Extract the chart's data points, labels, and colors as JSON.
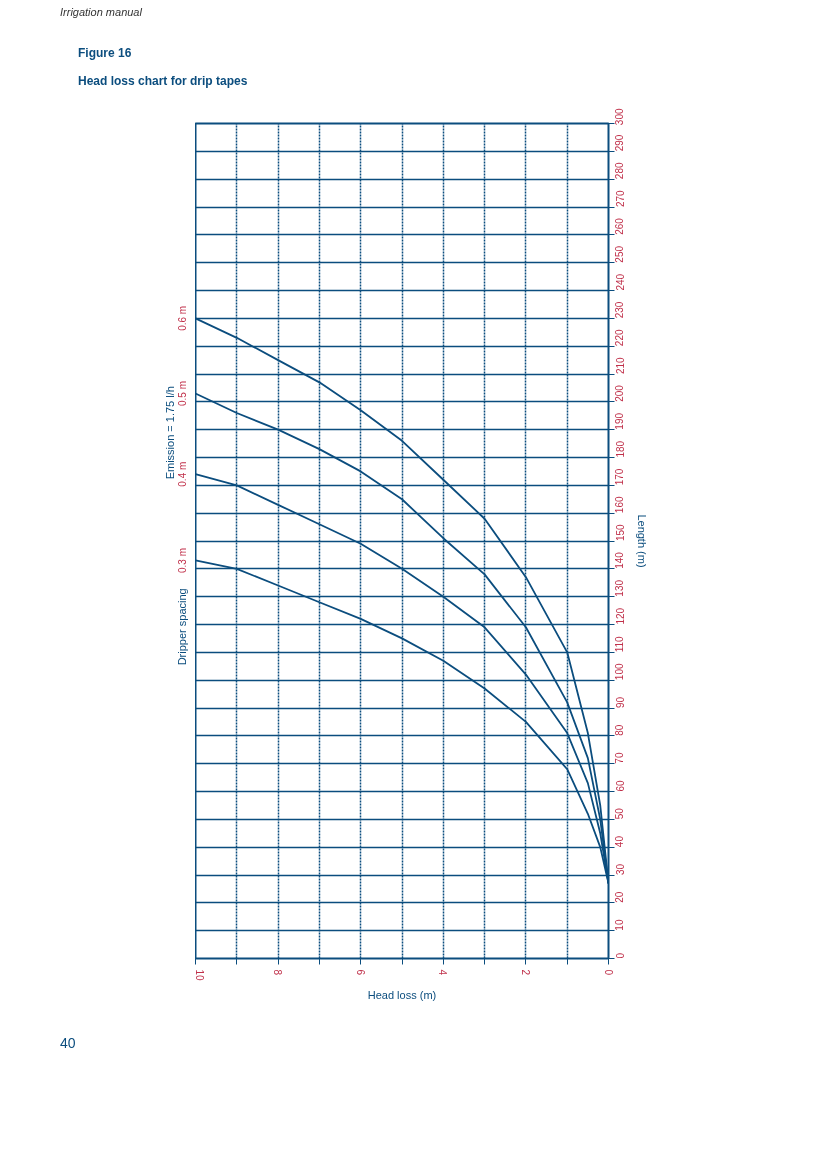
{
  "chart_data": {
    "type": "line",
    "title": "Figure 16",
    "subtitle": "Head loss chart for drip tapes",
    "xlabel": "Head loss (m)",
    "ylabel": "Length (m)",
    "annotations": [
      "Irrigation manual",
      "Dripper spacing",
      "Emission  =  1.75 l/h",
      "40"
    ],
    "xlim": [
      10,
      0
    ],
    "ylim": [
      0,
      300
    ],
    "xticks": [
      0,
      {
        "value": 1,
        "label": null
      },
      2,
      {
        "value": 3,
        "label": null
      },
      4,
      {
        "value": 5,
        "label": null
      },
      6,
      {
        "value": 7,
        "label": null
      },
      8,
      {
        "value": 9,
        "label": null
      },
      10
    ],
    "yticks": [
      0,
      10,
      20,
      30,
      40,
      50,
      60,
      70,
      80,
      90,
      100,
      110,
      120,
      130,
      140,
      150,
      160,
      170,
      180,
      190,
      200,
      210,
      220,
      230,
      240,
      250,
      260,
      270,
      280,
      290,
      300
    ],
    "grid": true,
    "marker": "none",
    "line_style": "solid",
    "x": [
      10,
      9,
      8,
      7,
      6,
      5,
      4,
      3,
      2,
      1,
      0.5,
      0.2,
      0
    ],
    "series": [
      {
        "name": "0.3 m",
        "color": "#0b4d7e",
        "values": [
          143,
          140,
          134,
          128,
          122,
          115,
          107,
          97,
          85,
          68,
          52,
          40,
          27
        ]
      },
      {
        "name": "0.4 m",
        "color": "#0b4d7e",
        "values": [
          174,
          170,
          163,
          156,
          149,
          140,
          130,
          119,
          102,
          81,
          63,
          45,
          27
        ]
      },
      {
        "name": "0.5 m",
        "color": "#0b4d7e",
        "values": [
          203,
          196,
          190,
          183,
          175,
          165,
          151,
          138,
          119,
          92,
          72,
          50,
          27
        ]
      },
      {
        "name": "0.6 m",
        "color": "#0b4d7e",
        "values": [
          230,
          223,
          215,
          207,
          197,
          186,
          172,
          158,
          137,
          110,
          81,
          55,
          27
        ]
      }
    ]
  }
}
